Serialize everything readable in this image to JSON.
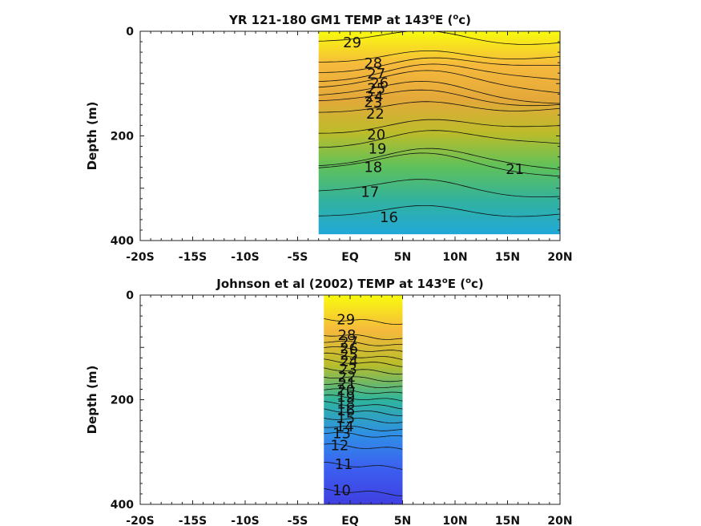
{
  "chart_data": [
    {
      "type": "contour",
      "title": "YR 121-180 GM1 TEMP at 143",
      "title_superscript": "o",
      "title_tail": "E (",
      "title_unit": "c",
      "title_close": ")",
      "ylabel": "Depth (m)",
      "x_ticks": [
        "-20S",
        "-15S",
        "-10S",
        "-5S",
        "EQ",
        "5N",
        "10N",
        "15N",
        "20N"
      ],
      "y_ticks": [
        "0",
        "200",
        "400"
      ],
      "xlim": [
        -20,
        20
      ],
      "ylim": [
        0,
        400
      ],
      "y_reversed": true,
      "data_extent": {
        "lat": [
          -3,
          20
        ],
        "depth": [
          0,
          388
        ]
      },
      "colormap": [
        "#f9fb0e",
        "#f5b93c",
        "#e4a83a",
        "#bcbc2a",
        "#5fc15a",
        "#32b29e",
        "#20a8d8"
      ],
      "contour_labels": [
        {
          "value": "29",
          "lat": 0.2,
          "depth": 20
        },
        {
          "value": "28",
          "lat": 2.2,
          "depth": 60
        },
        {
          "value": "27",
          "lat": 2.5,
          "depth": 80
        },
        {
          "value": "26",
          "lat": 2.8,
          "depth": 97
        },
        {
          "value": "25",
          "lat": 2.5,
          "depth": 108
        },
        {
          "value": "24",
          "lat": 2.3,
          "depth": 123
        },
        {
          "value": "23",
          "lat": 2.2,
          "depth": 134
        },
        {
          "value": "22",
          "lat": 2.4,
          "depth": 156
        },
        {
          "value": "20",
          "lat": 2.5,
          "depth": 196
        },
        {
          "value": "19",
          "lat": 2.6,
          "depth": 223
        },
        {
          "value": "18",
          "lat": 2.2,
          "depth": 258
        },
        {
          "value": "17",
          "lat": 1.9,
          "depth": 306
        },
        {
          "value": "16",
          "lat": 3.7,
          "depth": 354
        },
        {
          "value": "21",
          "lat": 15.7,
          "depth": 262
        }
      ]
    },
    {
      "type": "contour",
      "title": "Johnson et al (2002) TEMP at 143",
      "title_superscript": "o",
      "title_tail": "E (",
      "title_unit": "c",
      "title_close": ")",
      "ylabel": "Depth (m)",
      "x_ticks": [
        "-20S",
        "-15S",
        "-10S",
        "-5S",
        "EQ",
        "5N",
        "10N",
        "15N",
        "20N"
      ],
      "y_ticks": [
        "0",
        "200",
        "400"
      ],
      "xlim": [
        -20,
        20
      ],
      "ylim": [
        0,
        400
      ],
      "y_reversed": true,
      "data_extent": {
        "lat": [
          -2.5,
          5
        ],
        "depth": [
          0,
          400
        ]
      },
      "colormap": [
        "#f9fb0e",
        "#f5b93c",
        "#b9bd2b",
        "#2fb59c",
        "#2f8fe6",
        "#3c5ef0",
        "#3f3fe0"
      ],
      "contour_labels": [
        {
          "value": "29",
          "lat": -0.4,
          "depth": 45
        },
        {
          "value": "28",
          "lat": -0.3,
          "depth": 75
        },
        {
          "value": "27",
          "lat": -0.1,
          "depth": 88
        },
        {
          "value": "26",
          "lat": -0.1,
          "depth": 100
        },
        {
          "value": "25",
          "lat": -0.1,
          "depth": 113
        },
        {
          "value": "24",
          "lat": -0.1,
          "depth": 125
        },
        {
          "value": "23",
          "lat": -0.2,
          "depth": 140
        },
        {
          "value": "22",
          "lat": -0.3,
          "depth": 155
        },
        {
          "value": "21",
          "lat": -0.3,
          "depth": 168
        },
        {
          "value": "20",
          "lat": -0.4,
          "depth": 180
        },
        {
          "value": "19",
          "lat": -0.4,
          "depth": 193
        },
        {
          "value": "18",
          "lat": -0.4,
          "depth": 206
        },
        {
          "value": "16",
          "lat": -0.4,
          "depth": 219
        },
        {
          "value": "15",
          "lat": -0.4,
          "depth": 234
        },
        {
          "value": "14",
          "lat": -0.5,
          "depth": 250
        },
        {
          "value": "13",
          "lat": -0.8,
          "depth": 263
        },
        {
          "value": "12",
          "lat": -1.0,
          "depth": 286
        },
        {
          "value": "11",
          "lat": -0.6,
          "depth": 322
        },
        {
          "value": "10",
          "lat": -0.8,
          "depth": 372
        }
      ]
    }
  ]
}
